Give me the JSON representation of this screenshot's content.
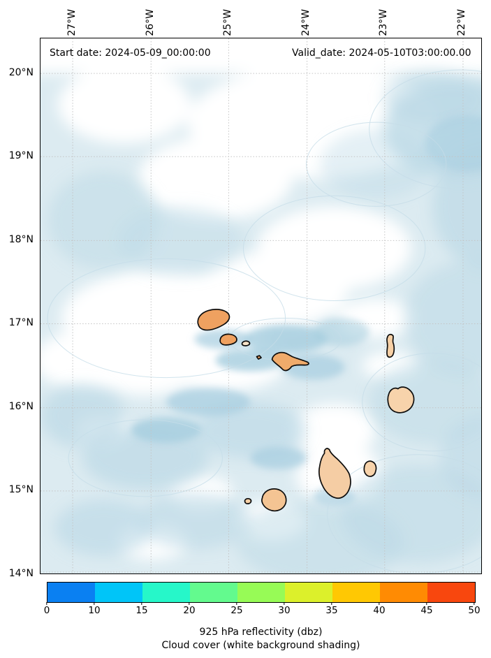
{
  "annotations": {
    "start_date": "Start date: 2024-05-09_00:00:00",
    "valid_date": "Valid_date: 2024-05-10T03:00:00.00"
  },
  "axes": {
    "top_ticks": [
      "27°W",
      "26°W",
      "25°W",
      "24°W",
      "23°W",
      "22°W"
    ],
    "left_ticks": [
      "20°N",
      "19°N",
      "18°N",
      "17°N",
      "16°N",
      "15°N",
      "14°N"
    ]
  },
  "colorbar": {
    "tick_labels": [
      "0",
      "10",
      "15",
      "20",
      "25",
      "30",
      "35",
      "40",
      "45",
      "50"
    ],
    "segment_colors": [
      "#0a80f2",
      "#00c5f8",
      "#26f7c9",
      "#63fa8e",
      "#97fb56",
      "#dcf02b",
      "#ffc803",
      "#ff8b03",
      "#f8470e"
    ],
    "caption_line1": "925 hPa reflectivity (dbz)",
    "caption_line2": "Cloud cover (white background shading)"
  },
  "map_colors": {
    "ocean_base": "#dcebf1",
    "cloud_white": "#ffffff",
    "moist_blue": "#bcd9e6",
    "moist_blue_dark": "#a5cddf",
    "island_fill_light": "#f6d0a6",
    "island_fill_orange": "#efa160",
    "coastline": "#0d0d0d"
  },
  "chart_data": {
    "type": "heatmap",
    "subtype": "geographic-weather-map",
    "region": "Cape Verde islands, eastern Atlantic",
    "x_axis": {
      "label": "longitude",
      "ticks_deg_west": [
        27,
        26,
        25,
        24,
        23,
        22
      ]
    },
    "y_axis": {
      "label": "latitude",
      "ticks_deg_north": [
        20,
        19,
        18,
        17,
        16,
        15,
        14
      ]
    },
    "grid": "dashed lat/lon graticule",
    "colorbar": {
      "bounds": [
        0,
        10,
        15,
        20,
        25,
        30,
        35,
        40,
        45,
        50
      ],
      "label": "925 hPa reflectivity (dbz)",
      "secondary_label": "Cloud cover (white background shading)",
      "orientation": "horizontal",
      "note": "no reflectivity >= 0 dbz shown on map; shading depicts cloud cover (white) over light-blue background"
    },
    "annotations": [
      "Start date: 2024-05-09_00:00:00",
      "Valid_date: 2024-05-10T03:00:00.00"
    ]
  }
}
